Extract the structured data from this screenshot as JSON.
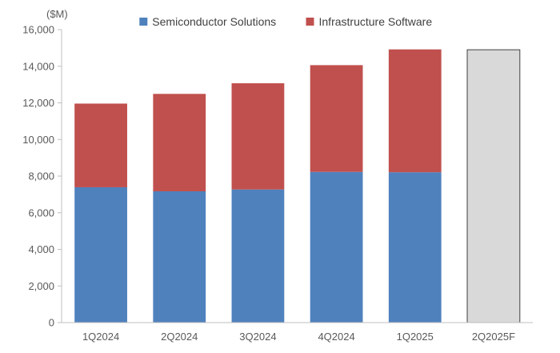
{
  "chart_data": {
    "type": "bar",
    "stacked": true,
    "unit_label": "($M)",
    "categories": [
      "1Q2024",
      "2Q2024",
      "3Q2024",
      "4Q2024",
      "1Q2025",
      "2Q2025F"
    ],
    "series": [
      {
        "name": "Semiconductor Solutions",
        "color": "#4f81bd",
        "values": [
          7390,
          7170,
          7270,
          8230,
          8210,
          null
        ]
      },
      {
        "name": "Infrastructure Software",
        "color": "#c0504d",
        "values": [
          4570,
          5320,
          5800,
          5830,
          6710,
          null
        ]
      },
      {
        "name": "",
        "color": "#d9d9d9",
        "values": [
          null,
          null,
          null,
          null,
          null,
          14900
        ]
      }
    ],
    "ylim": [
      0,
      16000
    ],
    "yticks": [
      0,
      2000,
      4000,
      6000,
      8000,
      10000,
      12000,
      14000,
      16000
    ],
    "ytick_labels": [
      "0",
      "2,000",
      "4,000",
      "6,000",
      "8,000",
      "10,000",
      "12,000",
      "14,000",
      "16,000"
    ],
    "legend_position": "top-center",
    "grid": false
  }
}
